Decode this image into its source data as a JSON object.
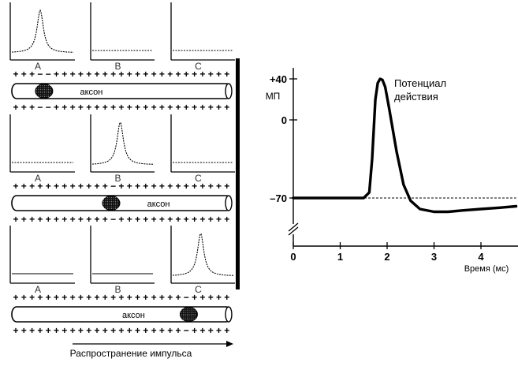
{
  "left_panel": {
    "channel_labels": [
      "A",
      "B",
      "C"
    ],
    "axon_label": "аксон",
    "propagation_label": "Распространение импульса",
    "stages": [
      {
        "active": "A",
        "segment_fraction": 0.15
      },
      {
        "active": "B",
        "segment_fraction": 0.47
      },
      {
        "active": "C",
        "segment_fraction": 0.84
      }
    ]
  },
  "chart_data": {
    "type": "line",
    "title": "",
    "ylabel": "МП",
    "xlabel": "Время (мс)",
    "annotation": "Потенциал действия",
    "x_ticks": [
      "0",
      "1",
      "2",
      "3",
      "4"
    ],
    "y_ticks": [
      "+40",
      "0",
      "–70"
    ],
    "xlim": [
      0,
      4.75
    ],
    "ylim": [
      -110,
      40
    ],
    "resting_potential": -70,
    "axis_break": true,
    "series": [
      {
        "x": [
          0,
          1.5,
          1.62,
          1.68,
          1.75,
          1.8,
          1.85,
          1.9,
          1.96,
          2.04,
          2.2,
          2.35,
          2.5,
          2.7,
          3.0,
          3.3,
          3.6,
          4.0,
          4.4,
          4.75
        ],
        "values": [
          -70,
          -70,
          -65,
          -35,
          20,
          36,
          40,
          39,
          32,
          12,
          -28,
          -58,
          -72,
          -78,
          -80,
          -80,
          -79,
          -78,
          -77,
          -76
        ]
      }
    ]
  }
}
